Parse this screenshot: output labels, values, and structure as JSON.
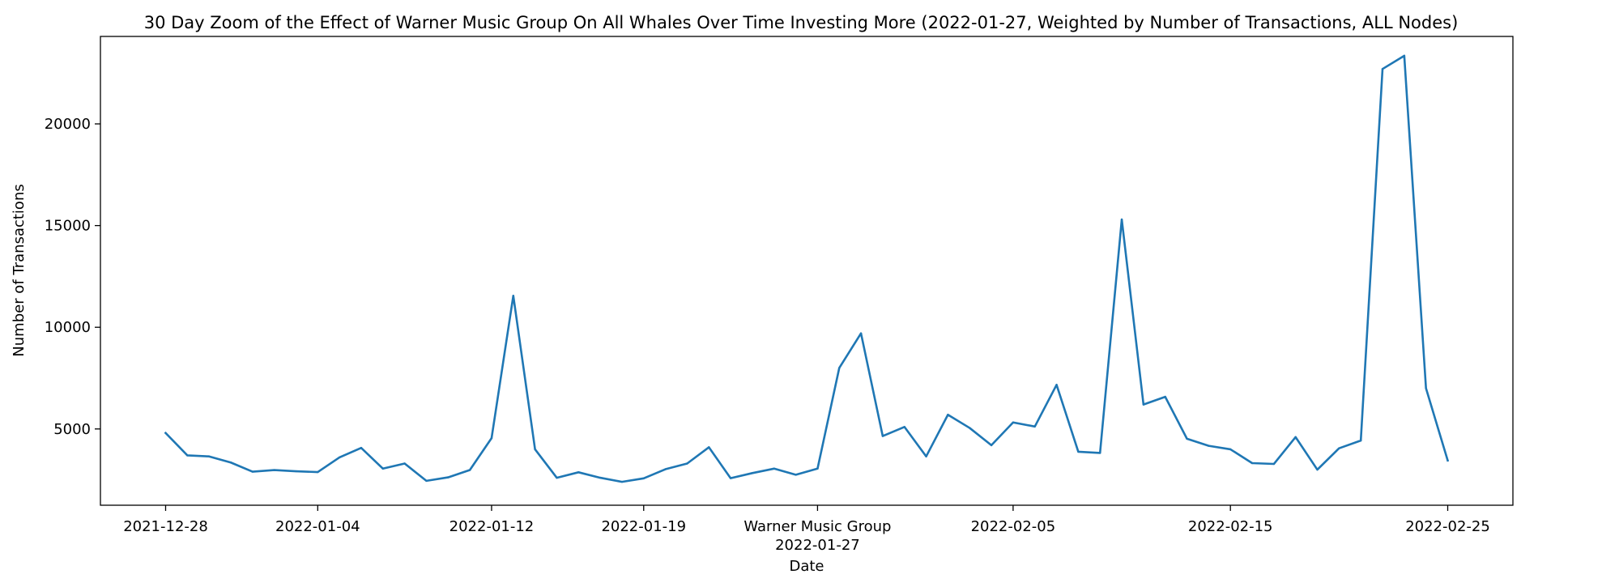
{
  "chart_data": {
    "type": "line",
    "title": "30 Day Zoom of the Effect of Warner Music Group On All Whales Over Time Investing More (2022-01-27, Weighted by Number of Transactions, ALL Nodes)",
    "xlabel": "Date",
    "ylabel": "Number of Transactions",
    "x_ticks": [
      "2021-12-28",
      "2022-01-04",
      "2022-01-12",
      "2022-01-19",
      "2022-01-27",
      "2022-02-05",
      "2022-02-15",
      "2022-02-25"
    ],
    "y_ticks": [
      5000,
      10000,
      15000,
      20000
    ],
    "ylim": [
      1250,
      24300
    ],
    "xlim": [
      "2021-12-25",
      "2022-02-28"
    ],
    "event_marker": {
      "label": "Warner Music Group",
      "date": "2022-01-27"
    },
    "grid": false,
    "line_color": "#1f77b4",
    "series": [
      {
        "dates": [
          "2021-12-28",
          "2021-12-29",
          "2021-12-30",
          "2021-12-31",
          "2022-01-01",
          "2022-01-02",
          "2022-01-03",
          "2022-01-04",
          "2022-01-05",
          "2022-01-06",
          "2022-01-07",
          "2022-01-08",
          "2022-01-09",
          "2022-01-10",
          "2022-01-11",
          "2022-01-12",
          "2022-01-13",
          "2022-01-14",
          "2022-01-15",
          "2022-01-16",
          "2022-01-17",
          "2022-01-18",
          "2022-01-19",
          "2022-01-20",
          "2022-01-21",
          "2022-01-22",
          "2022-01-23",
          "2022-01-24",
          "2022-01-25",
          "2022-01-26",
          "2022-01-27",
          "2022-01-28",
          "2022-01-29",
          "2022-01-30",
          "2022-01-31",
          "2022-02-01",
          "2022-02-02",
          "2022-02-03",
          "2022-02-04",
          "2022-02-05",
          "2022-02-06",
          "2022-02-07",
          "2022-02-08",
          "2022-02-09",
          "2022-02-10",
          "2022-02-11",
          "2022-02-12",
          "2022-02-13",
          "2022-02-14",
          "2022-02-15",
          "2022-02-16",
          "2022-02-17",
          "2022-02-18",
          "2022-02-19",
          "2022-02-20",
          "2022-02-21",
          "2022-02-22",
          "2022-02-23",
          "2022-02-24",
          "2022-02-25"
        ],
        "values": [
          4800,
          3700,
          3650,
          3350,
          2900,
          2980,
          2920,
          2880,
          3600,
          4070,
          3050,
          3300,
          2450,
          2620,
          2980,
          4550,
          11550,
          4000,
          2600,
          2870,
          2600,
          2400,
          2570,
          3020,
          3300,
          4100,
          2580,
          2830,
          3050,
          2750,
          3050,
          8000,
          9700,
          4650,
          5100,
          3650,
          5700,
          5050,
          4200,
          5320,
          5120,
          7170,
          3880,
          3820,
          15300,
          6200,
          6580,
          4520,
          4170,
          4000,
          3320,
          3280,
          4600,
          3000,
          4050,
          4430,
          22700,
          23350,
          7000,
          3450
        ]
      }
    ]
  }
}
